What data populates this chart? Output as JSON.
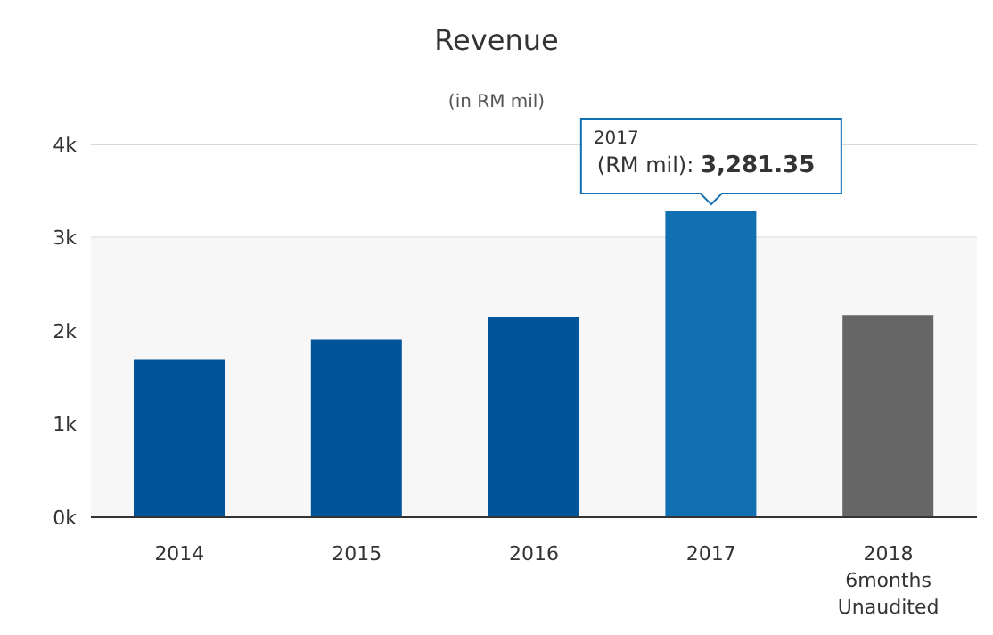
{
  "chart_data": {
    "type": "bar",
    "title": "Revenue",
    "subtitle": "(in RM mil)",
    "categories": [
      "2014",
      "2015",
      "2016",
      "2017",
      "2018\n6months\nUnaudited"
    ],
    "values": [
      1690,
      1910,
      2150,
      3281.35,
      2170
    ],
    "colors": [
      "#00559a",
      "#00559a",
      "#00559a",
      "#1170b1",
      "#666666"
    ],
    "ylim": [
      0,
      4000
    ],
    "yticks": [
      {
        "value": 0,
        "label": "0k"
      },
      {
        "value": 1000,
        "label": "1k"
      },
      {
        "value": 2000,
        "label": "2k"
      },
      {
        "value": 3000,
        "label": "3k"
      },
      {
        "value": 4000,
        "label": "4k"
      }
    ],
    "grid": "y",
    "bands": [
      {
        "axis": "y",
        "from": 0,
        "to": 3000,
        "color": "#f7f7f7"
      }
    ],
    "annotations": [
      {
        "text": "2017\n(RM mil): 3,281.35",
        "x": "2017",
        "y": 3281.35
      }
    ]
  }
}
